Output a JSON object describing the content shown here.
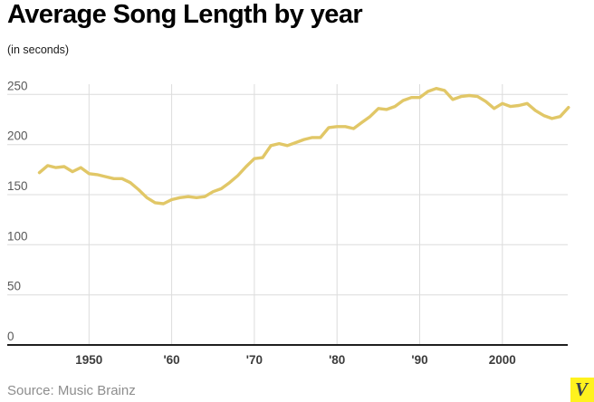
{
  "header": {
    "title": "Average Song Length by year",
    "subtitle": "(in seconds)"
  },
  "footer": {
    "source": "Source: Music Brainz",
    "logo_letter": "V"
  },
  "colors": {
    "line": "#E1C767",
    "grid": "#DCDCDC",
    "axis": "#1F1F1F",
    "logo_bg": "#FFF21E",
    "logo_letter": "#3A414D"
  },
  "chart_data": {
    "type": "line",
    "title": "Average Song Length by year",
    "subtitle": "(in seconds)",
    "ylabel": "(in seconds)",
    "xlabel": "",
    "unit": "seconds",
    "grid": true,
    "legend": false,
    "ylim": [
      0,
      265
    ],
    "xlim": [
      1944,
      2008
    ],
    "yticks": [
      250,
      200,
      150,
      100,
      50,
      0
    ],
    "ytick_labels": [
      "250",
      "200",
      "150",
      "100",
      "50",
      "0"
    ],
    "xticks": [
      1950,
      1960,
      1970,
      1980,
      1990,
      2000
    ],
    "xtick_labels": [
      "1950",
      "'60",
      "'70",
      "'80",
      "'90",
      "2000"
    ],
    "series_name": "Average song length (seconds)",
    "x": [
      1944,
      1945,
      1946,
      1947,
      1948,
      1949,
      1950,
      1951,
      1952,
      1953,
      1954,
      1955,
      1956,
      1957,
      1958,
      1959,
      1960,
      1961,
      1962,
      1963,
      1964,
      1965,
      1966,
      1967,
      1968,
      1969,
      1970,
      1971,
      1972,
      1973,
      1974,
      1975,
      1976,
      1977,
      1978,
      1979,
      1980,
      1981,
      1982,
      1983,
      1984,
      1985,
      1986,
      1987,
      1988,
      1989,
      1990,
      1991,
      1992,
      1993,
      1994,
      1995,
      1996,
      1997,
      1998,
      1999,
      2000,
      2001,
      2002,
      2003,
      2004,
      2005,
      2006,
      2007,
      2008
    ],
    "values": [
      172,
      179,
      177,
      178,
      173,
      177,
      171,
      170,
      168,
      166,
      166,
      162,
      155,
      147,
      142,
      141,
      145,
      147,
      148,
      147,
      148,
      153,
      156,
      162,
      169,
      178,
      186,
      187,
      199,
      201,
      199,
      202,
      205,
      207,
      207,
      217,
      218,
      218,
      216,
      222,
      228,
      236,
      235,
      238,
      244,
      247,
      247,
      253,
      256,
      254,
      245,
      248,
      249,
      248,
      243,
      236,
      241,
      238,
      239,
      241,
      234,
      229,
      226,
      228,
      237
    ]
  }
}
